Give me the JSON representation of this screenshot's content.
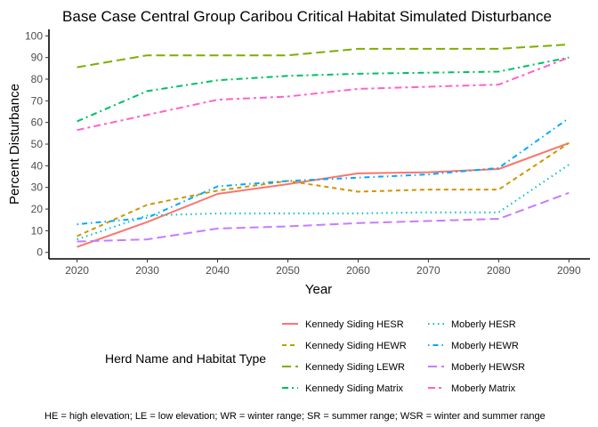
{
  "chart_data": {
    "type": "line",
    "title": "Base Case Central Group Caribou Critical Habitat Simulated Disturbance",
    "xlabel": "Year",
    "ylabel": "Percent Disturbance",
    "x": [
      2020,
      2030,
      2040,
      2050,
      2060,
      2070,
      2080,
      2090
    ],
    "xlim": [
      2016,
      2093
    ],
    "ylim": [
      -3,
      103
    ],
    "xticks": [
      2020,
      2030,
      2040,
      2050,
      2060,
      2070,
      2080,
      2090
    ],
    "yticks": [
      0,
      10,
      20,
      30,
      40,
      50,
      60,
      70,
      80,
      90,
      100
    ],
    "grid": false,
    "legend": {
      "title": "Herd Name and Habitat Type",
      "position": "bottom"
    },
    "caption": "HE = high elevation; LE = low elevation; WR  = winter range; SR = summer range; WSR = winter and summer range",
    "series": [
      {
        "name": "Kennedy Siding HESR",
        "color": "#F8766D",
        "dash": "solid",
        "values": [
          2.5,
          14,
          27,
          31.5,
          36.5,
          37,
          38.5,
          50.5
        ]
      },
      {
        "name": "Kennedy Siding HEWR",
        "color": "#CD9600",
        "dash": "dashed",
        "values": [
          7.5,
          22,
          28.5,
          33,
          28,
          29,
          29,
          50.5
        ]
      },
      {
        "name": "Kennedy Siding LEWR",
        "color": "#7CAE00",
        "dash": "longdash",
        "values": [
          85.5,
          91,
          91,
          91,
          94,
          94,
          94,
          96
        ]
      },
      {
        "name": "Kennedy Siding Matrix",
        "color": "#00BE67",
        "dash": "dashdot",
        "values": [
          60.5,
          74.5,
          79.5,
          81.5,
          82.5,
          83,
          83.5,
          90
        ]
      },
      {
        "name": "Moberly HESR",
        "color": "#00BFC4",
        "dash": "dotted",
        "values": [
          6,
          17,
          18,
          18,
          18,
          18.5,
          18.5,
          40.5
        ]
      },
      {
        "name": "Moberly HEWR",
        "color": "#00A9FF",
        "dash": "dotdash",
        "values": [
          13,
          16,
          30.5,
          33,
          34.5,
          36,
          39,
          62
        ]
      },
      {
        "name": "Moberly HEWSR",
        "color": "#C77CFF",
        "dash": "longdash",
        "values": [
          5,
          6,
          11,
          12,
          13.5,
          14.5,
          15.5,
          27.5
        ]
      },
      {
        "name": "Moberly Matrix",
        "color": "#FF61CC",
        "dash": "twodash",
        "values": [
          56.5,
          63.5,
          70.5,
          72,
          75.5,
          76.5,
          77.5,
          90
        ]
      }
    ]
  }
}
